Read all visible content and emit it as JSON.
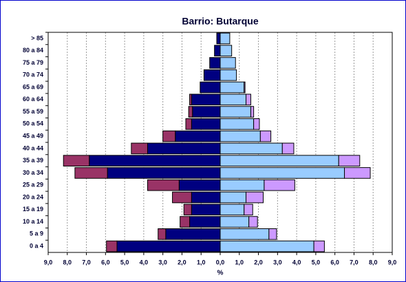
{
  "chart_data": {
    "type": "pyramid",
    "title": "Barrio: Butarque",
    "xlabel": "%",
    "categories": [
      "> 85",
      "80 a 84",
      "75 a 79",
      "70 a 74",
      "65 a 69",
      "60 a 64",
      "55 a 59",
      "50 a 54",
      "45 a 49",
      "40 a 44",
      "35 a 39",
      "30 a 34",
      "25 a 29",
      "20 a 24",
      "15 a 19",
      "10 a 14",
      "5 a 9",
      "0 a 4"
    ],
    "series": [
      {
        "side": "left",
        "color": "#000080",
        "values": [
          0.18,
          0.3,
          0.55,
          0.85,
          1.05,
          1.5,
          1.45,
          1.5,
          2.35,
          3.8,
          6.85,
          5.9,
          2.15,
          1.5,
          1.5,
          1.6,
          2.85,
          5.4
        ]
      },
      {
        "side": "left",
        "color": "#993366",
        "values": [
          0,
          0,
          0,
          0,
          0,
          0.1,
          0.2,
          0.3,
          0.65,
          0.85,
          1.35,
          1.7,
          1.65,
          1.0,
          0.4,
          0.5,
          0.4,
          0.55
        ]
      },
      {
        "side": "right",
        "color": "#99ccff",
        "values": [
          0.5,
          0.6,
          0.8,
          0.85,
          1.25,
          1.35,
          1.6,
          1.75,
          2.1,
          3.25,
          6.2,
          6.5,
          2.3,
          1.35,
          1.25,
          1.5,
          2.55,
          4.9
        ]
      },
      {
        "side": "right",
        "color": "#cc99ff",
        "values": [
          0,
          0,
          0,
          0,
          0.05,
          0.25,
          0.15,
          0.3,
          0.55,
          0.6,
          1.1,
          1.35,
          1.6,
          0.9,
          0.45,
          0.45,
          0.4,
          0.55
        ]
      }
    ],
    "xlim": [
      -9,
      9
    ],
    "xticks": [
      {
        "value": -9,
        "label": "9,0"
      },
      {
        "value": -8,
        "label": "8,0"
      },
      {
        "value": -7,
        "label": "7,0"
      },
      {
        "value": -6,
        "label": "6,0"
      },
      {
        "value": -5,
        "label": "5,0"
      },
      {
        "value": -4,
        "label": "4,0"
      },
      {
        "value": -3,
        "label": "3,0"
      },
      {
        "value": -2,
        "label": "2,0"
      },
      {
        "value": -1,
        "label": "1,0"
      },
      {
        "value": 0,
        "label": "0,0"
      },
      {
        "value": 1,
        "label": "1,0"
      },
      {
        "value": 2,
        "label": "2,0"
      },
      {
        "value": 3,
        "label": "3,0"
      },
      {
        "value": 4,
        "label": "4,0"
      },
      {
        "value": 5,
        "label": "5,0"
      },
      {
        "value": 6,
        "label": "6,0"
      },
      {
        "value": 7,
        "label": "7,0"
      },
      {
        "value": 8,
        "label": "8,0"
      },
      {
        "value": 9,
        "label": "9,0"
      }
    ],
    "grid": true
  }
}
